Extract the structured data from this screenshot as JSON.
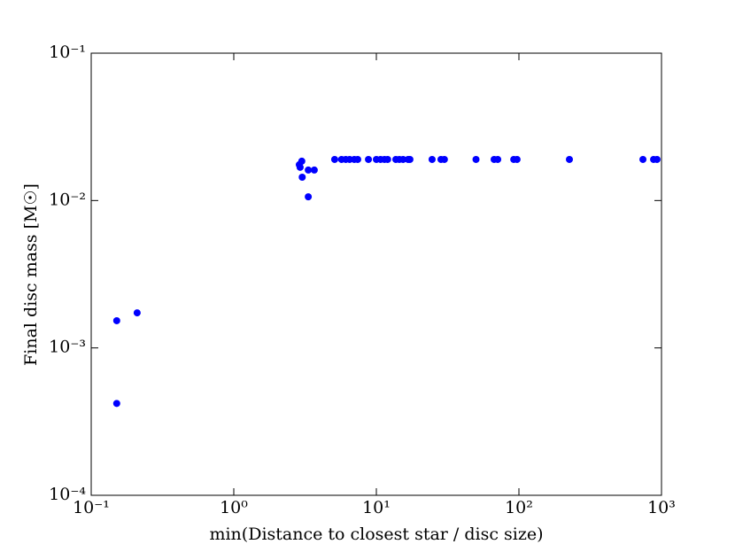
{
  "chart_data": {
    "type": "scatter",
    "x_label": "min(Distance to closest star / disc size)",
    "y_label": "Final disc mass [M☉]",
    "xscale": "log",
    "yscale": "log",
    "xlim": [
      0.1,
      1000
    ],
    "ylim": [
      0.0001,
      0.1
    ],
    "xticks": [
      {
        "value": 0.1,
        "label": "10⁻¹"
      },
      {
        "value": 1,
        "label": "10⁰"
      },
      {
        "value": 10,
        "label": "10¹"
      },
      {
        "value": 100,
        "label": "10²"
      },
      {
        "value": 1000,
        "label": "10³"
      }
    ],
    "yticks": [
      {
        "value": 0.0001,
        "label": "10⁻⁴"
      },
      {
        "value": 0.001,
        "label": "10⁻³"
      },
      {
        "value": 0.01,
        "label": "10⁻²"
      },
      {
        "value": 0.1,
        "label": "10⁻¹"
      }
    ],
    "color": "#0000ff",
    "x": [
      0.151,
      0.151,
      0.21,
      2.88,
      2.92,
      3.0,
      3.02,
      3.33,
      3.33,
      3.67,
      5.1,
      5.7,
      6.1,
      6.5,
      7.0,
      7.4,
      8.8,
      10,
      10.7,
      11.4,
      12,
      13.7,
      14.5,
      15.4,
      16.7,
      17.2,
      24.6,
      28.4,
      30,
      50,
      67,
      71,
      92,
      97,
      226,
      741,
      880,
      930
    ],
    "y": [
      0.00042,
      0.00153,
      0.00173,
      0.0175,
      0.0168,
      0.0185,
      0.0144,
      0.0106,
      0.0161,
      0.0161,
      0.019,
      0.019,
      0.019,
      0.019,
      0.019,
      0.019,
      0.019,
      0.019,
      0.019,
      0.019,
      0.019,
      0.019,
      0.019,
      0.019,
      0.019,
      0.019,
      0.019,
      0.019,
      0.019,
      0.019,
      0.019,
      0.019,
      0.019,
      0.019,
      0.019,
      0.019,
      0.019,
      0.019
    ]
  }
}
